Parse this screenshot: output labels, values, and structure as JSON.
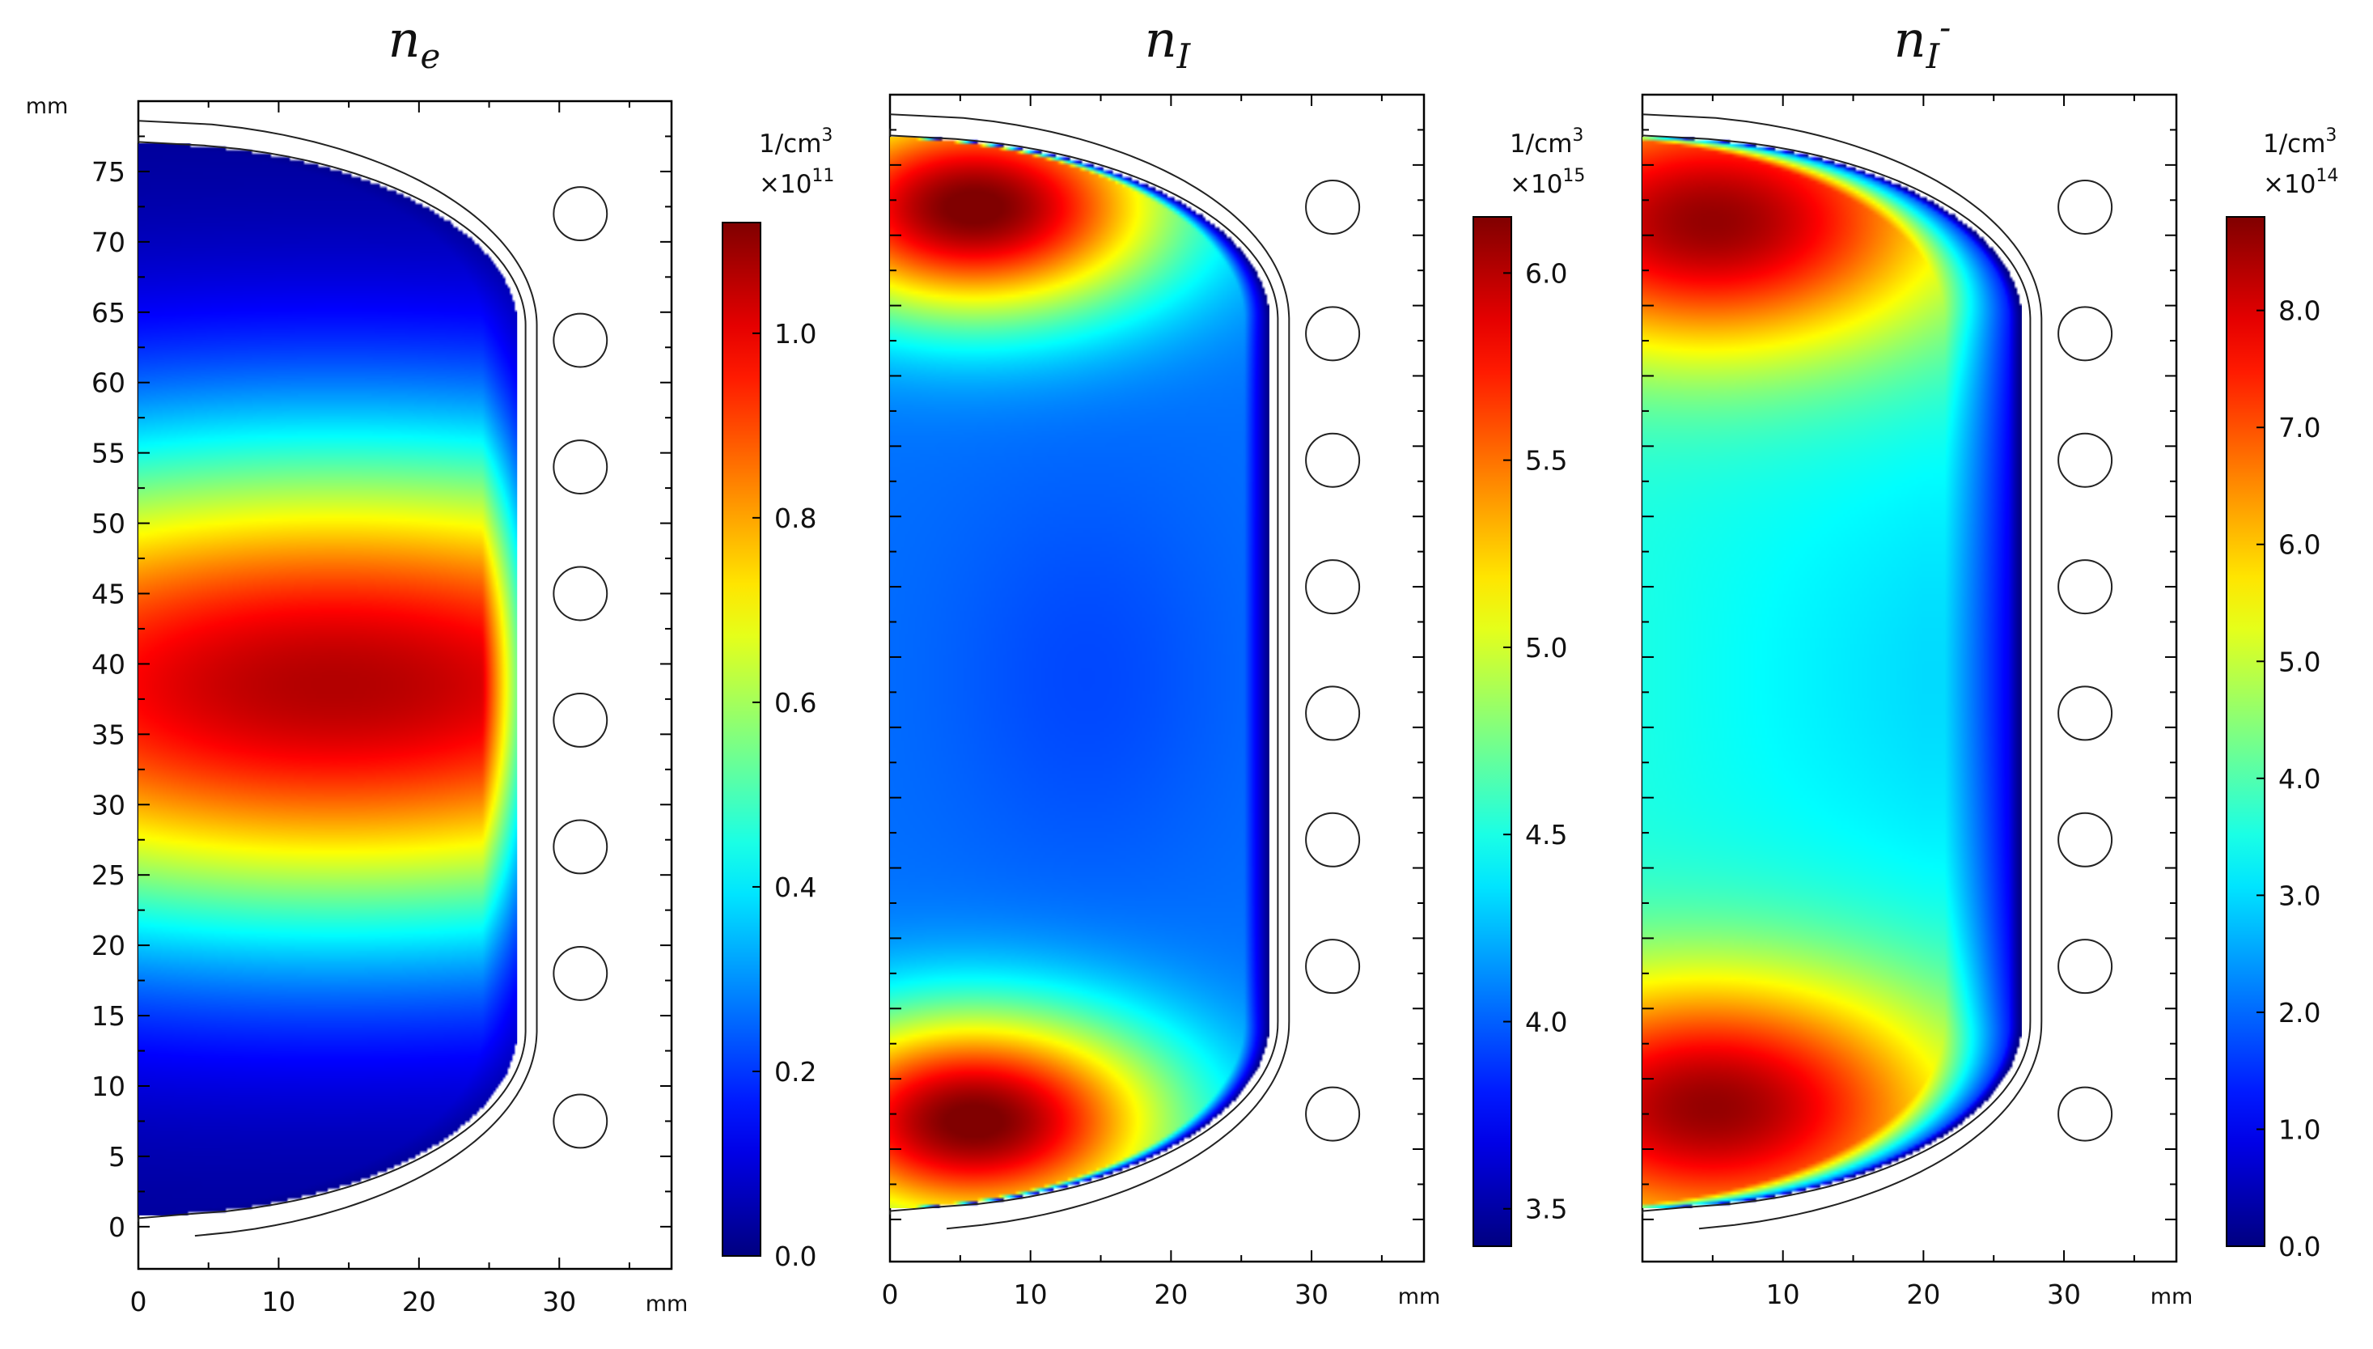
{
  "chart_data": [
    {
      "type": "heatmap",
      "title_base": "n",
      "title_sub": "e",
      "title_sup": "",
      "y_unit": "mm",
      "x_unit": "mm",
      "xlim": [
        0,
        38
      ],
      "ylim": [
        -3,
        80
      ],
      "x_ticks": [
        "0",
        "10",
        "20",
        "30"
      ],
      "x_tick_values": [
        0,
        10,
        20,
        30
      ],
      "y_ticks": [
        "0",
        "5",
        "10",
        "15",
        "20",
        "25",
        "30",
        "35",
        "40",
        "45",
        "50",
        "55",
        "60",
        "65",
        "70",
        "75"
      ],
      "y_tick_values": [
        0,
        5,
        10,
        15,
        20,
        25,
        30,
        35,
        40,
        45,
        50,
        55,
        60,
        65,
        70,
        75
      ],
      "colorbar": {
        "unit": "1/cm",
        "unit_sup": "3",
        "scale": "×10",
        "scale_sup": "11",
        "range": [
          0.0,
          1.12
        ],
        "ticks": [
          "0.0",
          "0.2",
          "0.4",
          "0.6",
          "0.8",
          "1.0"
        ],
        "tick_values": [
          0.0,
          0.2,
          0.4,
          0.6,
          0.8,
          1.0
        ]
      },
      "field": {
        "pattern": "center-peak",
        "min": 0.0,
        "max": 1.12,
        "peak_y_mm": 38.5
      },
      "coil_centers_y_mm": [
        72,
        63,
        54,
        45,
        36,
        27,
        18,
        7.5
      ],
      "coil_x_mm": 31.5
    },
    {
      "type": "heatmap",
      "title_base": "n",
      "title_sub": "I",
      "title_sup": "",
      "y_unit": "",
      "x_unit": "mm",
      "xlim": [
        0,
        38
      ],
      "ylim": [
        -3,
        80
      ],
      "x_ticks": [
        "0",
        "10",
        "20",
        "30"
      ],
      "x_tick_values": [
        0,
        10,
        20,
        30
      ],
      "y_ticks": [],
      "y_tick_values": [],
      "colorbar": {
        "unit": "1/cm",
        "unit_sup": "3",
        "scale": "×10",
        "scale_sup": "15",
        "range": [
          3.4,
          6.15
        ],
        "ticks": [
          "3.5",
          "4.0",
          "4.5",
          "5.0",
          "5.5",
          "6.0"
        ],
        "tick_values": [
          3.5,
          4.0,
          4.5,
          5.0,
          5.5,
          6.0
        ]
      },
      "field": {
        "pattern": "two-lobe",
        "min": 3.4,
        "max": 6.15,
        "center_value": 4.05
      },
      "coil_centers_y_mm": [
        72,
        63,
        54,
        45,
        36,
        27,
        18,
        7.5
      ],
      "coil_x_mm": 31.5
    },
    {
      "type": "heatmap",
      "title_base": "n",
      "title_sub": "I",
      "title_sup": "-",
      "y_unit": "",
      "x_unit": "mm",
      "xlim": [
        0,
        38
      ],
      "ylim": [
        -3,
        80
      ],
      "x_ticks": [
        "10",
        "20",
        "30"
      ],
      "x_tick_values": [
        10,
        20,
        30
      ],
      "y_ticks": [],
      "y_tick_values": [],
      "colorbar": {
        "unit": "1/cm",
        "unit_sup": "3",
        "scale": "×10",
        "scale_sup": "14",
        "range": [
          0.0,
          8.8
        ],
        "ticks": [
          "0.0",
          "1.0",
          "2.0",
          "3.0",
          "4.0",
          "5.0",
          "6.0",
          "7.0",
          "8.0"
        ],
        "tick_values": [
          0.0,
          1.0,
          2.0,
          3.0,
          4.0,
          5.0,
          6.0,
          7.0,
          8.0
        ]
      },
      "field": {
        "pattern": "two-lobe-edge-depleted",
        "min": 0.0,
        "max": 8.8,
        "center_value": 3.4
      },
      "coil_centers_y_mm": [
        72,
        63,
        54,
        45,
        36,
        27,
        18,
        7.5
      ],
      "coil_x_mm": 31.5
    }
  ]
}
